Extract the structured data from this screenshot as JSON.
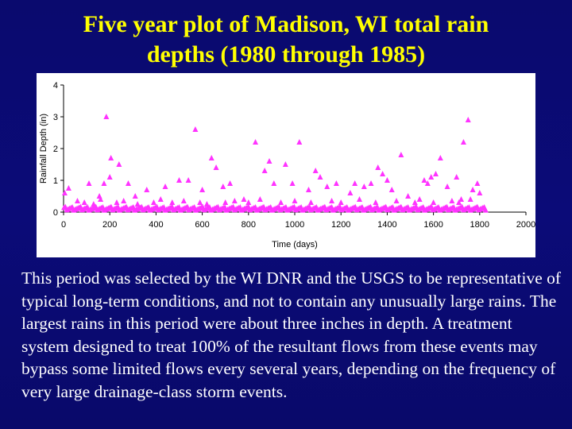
{
  "slide": {
    "title_line1": "Five year plot of Madison, WI total rain",
    "title_line2": "depths (1980 through 1985)",
    "body": "This period was selected by the WI DNR and the USGS to be representative of typical long-term conditions, and not to contain any unusually large rains. The largest rains in this period were about three inches in depth.  A treatment system designed to treat 100% of the resultant flows from these events may bypass some limited flows every several years, depending on the frequency of very large drainage-class storm events."
  },
  "colors": {
    "background": "#0b0b78",
    "title": "#ffff00",
    "body_text": "#ffffff",
    "marker": "#ff33ff"
  },
  "chart_data": {
    "type": "scatter",
    "marker": "triangle",
    "xlabel": "Time (days)",
    "ylabel": "Rainfall Depth (in)",
    "xlim": [
      0,
      2000
    ],
    "ylim": [
      0,
      4
    ],
    "xticks": [
      0,
      200,
      400,
      600,
      800,
      1000,
      1200,
      1400,
      1600,
      1800,
      2000
    ],
    "yticks": [
      0,
      1,
      2,
      3,
      4
    ],
    "grid": false,
    "points": [
      [
        5,
        0.6
      ],
      [
        22,
        0.75
      ],
      [
        110,
        0.9
      ],
      [
        155,
        0.5
      ],
      [
        175,
        0.9
      ],
      [
        185,
        3.0
      ],
      [
        200,
        1.1
      ],
      [
        205,
        1.7
      ],
      [
        240,
        1.5
      ],
      [
        280,
        0.9
      ],
      [
        310,
        0.5
      ],
      [
        360,
        0.7
      ],
      [
        440,
        0.8
      ],
      [
        500,
        1.0
      ],
      [
        540,
        1.0
      ],
      [
        570,
        2.6
      ],
      [
        600,
        0.7
      ],
      [
        640,
        1.7
      ],
      [
        660,
        1.4
      ],
      [
        690,
        0.8
      ],
      [
        720,
        0.9
      ],
      [
        780,
        0.4
      ],
      [
        830,
        2.2
      ],
      [
        870,
        1.3
      ],
      [
        890,
        1.6
      ],
      [
        910,
        0.9
      ],
      [
        960,
        1.5
      ],
      [
        990,
        0.9
      ],
      [
        1020,
        2.2
      ],
      [
        1060,
        0.7
      ],
      [
        1090,
        1.3
      ],
      [
        1110,
        1.1
      ],
      [
        1140,
        0.8
      ],
      [
        1180,
        0.9
      ],
      [
        1240,
        0.6
      ],
      [
        1260,
        0.9
      ],
      [
        1300,
        0.8
      ],
      [
        1330,
        0.9
      ],
      [
        1360,
        1.4
      ],
      [
        1380,
        1.2
      ],
      [
        1400,
        1.0
      ],
      [
        1420,
        0.7
      ],
      [
        1460,
        1.8
      ],
      [
        1490,
        0.5
      ],
      [
        1560,
        1.0
      ],
      [
        1575,
        0.9
      ],
      [
        1590,
        1.1
      ],
      [
        1610,
        1.2
      ],
      [
        1630,
        1.7
      ],
      [
        1660,
        0.8
      ],
      [
        1700,
        1.1
      ],
      [
        1720,
        0.4
      ],
      [
        1730,
        2.2
      ],
      [
        1750,
        2.9
      ],
      [
        1770,
        0.7
      ],
      [
        1790,
        0.9
      ],
      [
        1800,
        0.6
      ],
      [
        60,
        0.35
      ],
      [
        90,
        0.3
      ],
      [
        130,
        0.25
      ],
      [
        160,
        0.4
      ],
      [
        230,
        0.3
      ],
      [
        260,
        0.35
      ],
      [
        320,
        0.25
      ],
      [
        390,
        0.3
      ],
      [
        420,
        0.4
      ],
      [
        470,
        0.3
      ],
      [
        520,
        0.35
      ],
      [
        590,
        0.3
      ],
      [
        620,
        0.25
      ],
      [
        700,
        0.3
      ],
      [
        740,
        0.35
      ],
      [
        800,
        0.3
      ],
      [
        850,
        0.4
      ],
      [
        940,
        0.3
      ],
      [
        1000,
        0.35
      ],
      [
        1070,
        0.3
      ],
      [
        1160,
        0.35
      ],
      [
        1200,
        0.3
      ],
      [
        1280,
        0.4
      ],
      [
        1350,
        0.3
      ],
      [
        1440,
        0.35
      ],
      [
        1520,
        0.3
      ],
      [
        1540,
        0.4
      ],
      [
        1600,
        0.3
      ],
      [
        1680,
        0.35
      ],
      [
        1710,
        0.3
      ],
      [
        1760,
        0.4
      ]
    ]
  }
}
